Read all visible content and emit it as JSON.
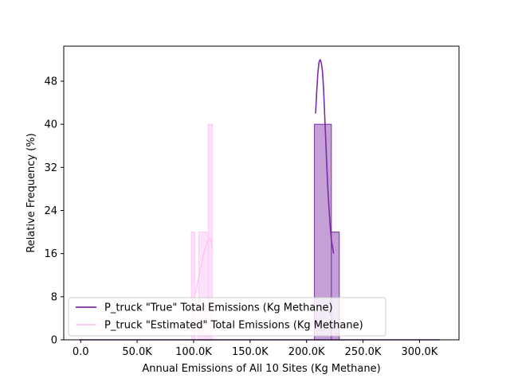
{
  "chart_data": {
    "type": "bar",
    "subtype": "histogram-with-kde",
    "title": "",
    "xlabel": "Annual Emissions of All 10 Sites (Kg Methane)",
    "ylabel": "Relative Frequency (%)",
    "xlim": [
      -15000,
      335000
    ],
    "ylim": [
      0,
      54.5
    ],
    "grid": false,
    "legend_position": "lower-left",
    "x_ticks": [
      {
        "value": 0,
        "label": "0.0"
      },
      {
        "value": 50000,
        "label": "50.0K"
      },
      {
        "value": 100000,
        "label": "100.0K"
      },
      {
        "value": 150000,
        "label": "150.0K"
      },
      {
        "value": 200000,
        "label": "200.0K"
      },
      {
        "value": 250000,
        "label": "250.0K"
      },
      {
        "value": 300000,
        "label": "300.0K"
      }
    ],
    "y_ticks": [
      {
        "value": 0,
        "label": "0"
      },
      {
        "value": 8,
        "label": "8"
      },
      {
        "value": 16,
        "label": "16"
      },
      {
        "value": 24,
        "label": "24"
      },
      {
        "value": 32,
        "label": "32"
      },
      {
        "value": 40,
        "label": "40"
      },
      {
        "value": 48,
        "label": "48"
      }
    ],
    "series": [
      {
        "name": "P_truck \"True\" Total Emissions (Kg Methane)",
        "line_color": "#7b2ba6",
        "bar_fill": "#c4a0d6",
        "bar_edge": "#7b2ba6",
        "bins": [
          {
            "x0": 207000,
            "x1": 222000,
            "value": 40
          },
          {
            "x0": 222000,
            "x1": 229000,
            "value": 20
          }
        ],
        "kde": [
          [
            208000,
            42
          ],
          [
            209000,
            46
          ],
          [
            210000,
            49.5
          ],
          [
            211000,
            51.5
          ],
          [
            212000,
            52
          ],
          [
            213000,
            51.5
          ],
          [
            214000,
            50
          ],
          [
            215000,
            47
          ],
          [
            216000,
            42
          ],
          [
            217000,
            37
          ],
          [
            218000,
            32
          ],
          [
            219000,
            27.5
          ],
          [
            220000,
            24
          ],
          [
            221000,
            21
          ],
          [
            222000,
            18.5
          ],
          [
            224000,
            16
          ]
        ]
      },
      {
        "name": "P_truck \"Estimated\" Total Emissions (Kg Methane)",
        "line_color": "#ffc5f5",
        "bar_fill": "#fde0fa",
        "bar_edge": "#ffc5f5",
        "bins": [
          {
            "x0": 98000,
            "x1": 101000,
            "value": 20
          },
          {
            "x0": 101000,
            "x1": 104500,
            "value": 0
          },
          {
            "x0": 104500,
            "x1": 113000,
            "value": 20
          },
          {
            "x0": 113000,
            "x1": 116500,
            "value": 40
          }
        ],
        "kde": [
          [
            99000,
            5
          ],
          [
            101000,
            8
          ],
          [
            103000,
            10
          ],
          [
            105000,
            12
          ],
          [
            107000,
            14
          ],
          [
            109000,
            16
          ],
          [
            111000,
            17.5
          ],
          [
            113000,
            18.5
          ],
          [
            115000,
            18.8
          ],
          [
            116500,
            17
          ]
        ]
      }
    ],
    "baseline_span": [
      -1500,
      318000
    ]
  }
}
